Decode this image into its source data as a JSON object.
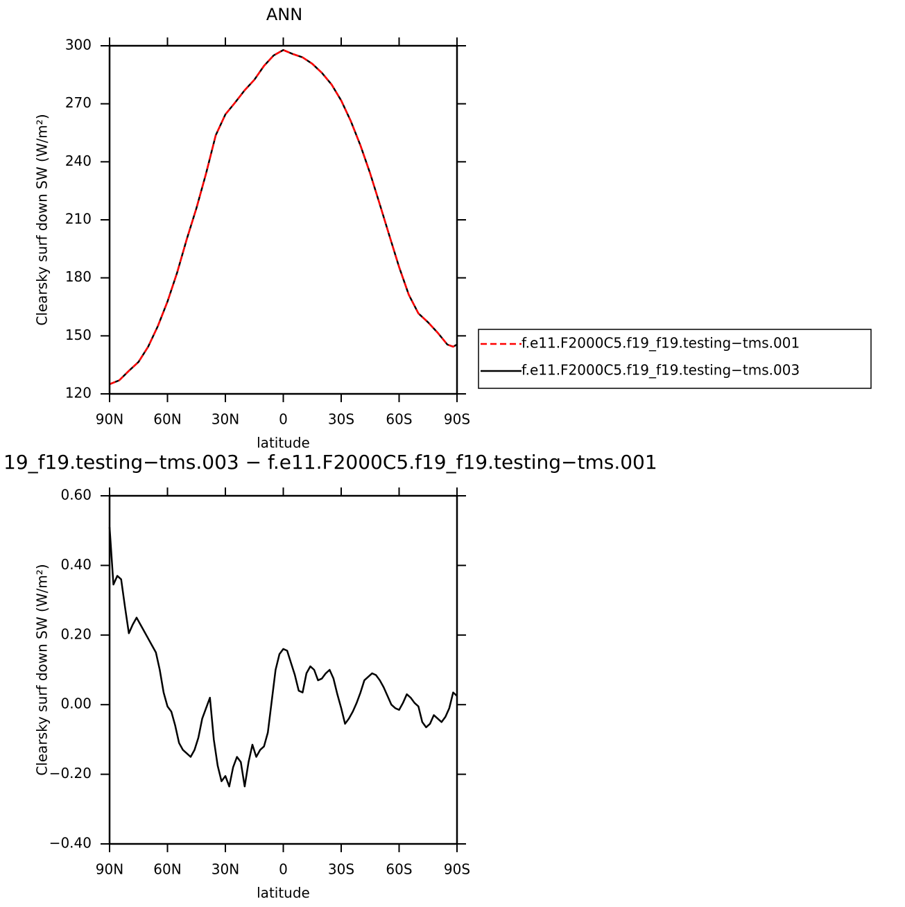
{
  "chart_data": [
    {
      "type": "line",
      "title": "ANN",
      "xlabel": "latitude",
      "ylabel": "Clearsky surf down SW (W/m²)",
      "xlim": [
        90,
        -90
      ],
      "xticks": [
        {
          "value": 90,
          "label": "90N"
        },
        {
          "value": 60,
          "label": "60N"
        },
        {
          "value": 30,
          "label": "30N"
        },
        0,
        {
          "value": -30,
          "label": "30S"
        },
        {
          "value": -60,
          "label": "60S"
        },
        {
          "value": -90,
          "label": "90S"
        }
      ],
      "ylim": [
        120,
        300
      ],
      "yticks": [
        120,
        150,
        180,
        210,
        240,
        270,
        300
      ],
      "legend": "right",
      "x": [
        90,
        85,
        80,
        75,
        70,
        65,
        60,
        55,
        50,
        45,
        40,
        35,
        30,
        25,
        20,
        15,
        10,
        5,
        0,
        -5,
        -10,
        -15,
        -20,
        -25,
        -30,
        -35,
        -40,
        -45,
        -50,
        -55,
        -60,
        -65,
        -70,
        -75,
        -80,
        -85,
        -88,
        -90
      ],
      "series": [
        {
          "name": "f.e11.F2000C5.f19_f19.testing−tms.001",
          "color": "#ff0000",
          "dash": "dashed",
          "values": [
            125,
            127,
            131.9,
            136.5,
            144.4,
            155,
            167.7,
            182.7,
            200,
            216,
            234,
            253.7,
            264.5,
            270.6,
            277,
            282.4,
            289.6,
            295,
            297.8,
            295.7,
            294,
            290.7,
            286,
            280,
            271.7,
            261,
            248.4,
            234,
            218,
            201.7,
            185.6,
            171.3,
            161.6,
            157,
            151.6,
            145.5,
            144.4,
            145.5
          ]
        },
        {
          "name": "f.e11.F2000C5.f19_f19.testing−tms.003",
          "color": "#000000",
          "dash": "solid",
          "values": [
            125,
            127,
            131.9,
            136.5,
            144.4,
            155,
            167.7,
            182.7,
            200,
            216,
            234,
            253.7,
            264.5,
            270.6,
            277,
            282.4,
            289.6,
            295,
            297.8,
            295.7,
            294,
            290.7,
            286,
            280,
            271.7,
            261,
            248.4,
            234,
            218,
            201.7,
            185.6,
            171.3,
            161.6,
            157,
            151.6,
            145.5,
            144.4,
            145.5
          ]
        }
      ]
    },
    {
      "type": "line",
      "title": "19_f19.testing−tms.003 − f.e11.F2000C5.f19_f19.testing−tms.001",
      "xlabel": "latitude",
      "ylabel": "Clearsky surf down SW (W/m²)",
      "xlim": [
        90,
        -90
      ],
      "xticks": [
        {
          "value": 90,
          "label": "90N"
        },
        {
          "value": 60,
          "label": "60N"
        },
        {
          "value": 30,
          "label": "30N"
        },
        0,
        {
          "value": -30,
          "label": "30S"
        },
        {
          "value": -60,
          "label": "60S"
        },
        {
          "value": -90,
          "label": "90S"
        }
      ],
      "ylim": [
        -0.4,
        0.6
      ],
      "yticks": [
        {
          "value": -0.4,
          "label": "−0.40"
        },
        {
          "value": -0.2,
          "label": "−0.20"
        },
        {
          "value": 0,
          "label": "0.00"
        },
        {
          "value": 0.2,
          "label": "0.20"
        },
        {
          "value": 0.4,
          "label": "0.40"
        },
        {
          "value": 0.6,
          "label": "0.60"
        }
      ],
      "x": [
        90,
        88,
        86,
        84,
        82,
        80,
        78,
        76,
        74,
        72,
        70,
        68,
        66,
        64,
        62,
        60,
        58,
        56,
        54,
        52,
        50,
        48,
        46,
        44,
        42,
        40,
        38,
        36,
        34,
        32,
        30,
        28,
        26,
        24,
        22,
        20,
        18,
        16,
        14,
        12,
        10,
        8,
        6,
        4,
        2,
        0,
        -2,
        -4,
        -6,
        -8,
        -10,
        -12,
        -14,
        -16,
        -18,
        -20,
        -22,
        -24,
        -26,
        -28,
        -30,
        -32,
        -34,
        -36,
        -38,
        -40,
        -42,
        -44,
        -46,
        -48,
        -50,
        -52,
        -54,
        -56,
        -58,
        -60,
        -62,
        -64,
        -66,
        -68,
        -70,
        -72,
        -74,
        -76,
        -78,
        -80,
        -82,
        -84,
        -86,
        -88,
        -90
      ],
      "series": [
        {
          "color": "#000000",
          "dash": "solid",
          "values": [
            0.51,
            0.345,
            0.37,
            0.36,
            0.28,
            0.205,
            0.23,
            0.25,
            0.23,
            0.21,
            0.19,
            0.17,
            0.15,
            0.1,
            0.035,
            -0.005,
            -0.02,
            -0.06,
            -0.11,
            -0.13,
            -0.14,
            -0.15,
            -0.13,
            -0.095,
            -0.04,
            -0.01,
            0.02,
            -0.1,
            -0.175,
            -0.22,
            -0.205,
            -0.235,
            -0.18,
            -0.15,
            -0.165,
            -0.235,
            -0.165,
            -0.115,
            -0.15,
            -0.13,
            -0.12,
            -0.08,
            0.01,
            0.1,
            0.145,
            0.16,
            0.155,
            0.12,
            0.085,
            0.04,
            0.035,
            0.09,
            0.11,
            0.1,
            0.07,
            0.075,
            0.09,
            0.1,
            0.075,
            0.03,
            -0.01,
            -0.055,
            -0.04,
            -0.02,
            0.005,
            0.035,
            0.07,
            0.08,
            0.09,
            0.085,
            0.07,
            0.05,
            0.025,
            0.0,
            -0.01,
            -0.015,
            0.005,
            0.03,
            0.02,
            0.005,
            -0.005,
            -0.05,
            -0.065,
            -0.055,
            -0.03,
            -0.04,
            -0.05,
            -0.035,
            -0.01,
            0.035,
            0.025
          ]
        }
      ]
    }
  ]
}
